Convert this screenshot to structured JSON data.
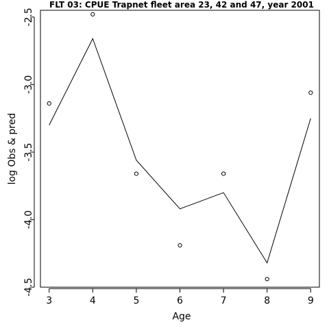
{
  "chart_data": {
    "type": "line",
    "title": "FLT 03: CPUE Trapnet fleet area 23, 42 and 47, year 2001",
    "xlabel": "Age",
    "ylabel": "log Obs & pred",
    "x": [
      3,
      4,
      5,
      6,
      7,
      8,
      9
    ],
    "xlim": [
      2.8,
      9.2
    ],
    "ylim": [
      -4.5,
      -2.45
    ],
    "xticks": [
      3,
      4,
      5,
      6,
      7,
      8,
      9
    ],
    "yticks": [
      -2.5,
      -3.0,
      -3.5,
      -4.0,
      -4.5
    ],
    "ytick_labels": [
      "-2.5",
      "-3.0",
      "-3.5",
      "-4.0",
      "-4.5"
    ],
    "grid": false,
    "series": [
      {
        "style": "points",
        "marker": "open-circle",
        "values": [
          -3.14,
          -2.48,
          -3.66,
          -4.19,
          -3.66,
          -4.44,
          -3.06
        ]
      },
      {
        "style": "line",
        "values": [
          -3.3,
          -2.66,
          -3.56,
          -3.92,
          -3.8,
          -4.32,
          -3.25
        ]
      }
    ]
  }
}
